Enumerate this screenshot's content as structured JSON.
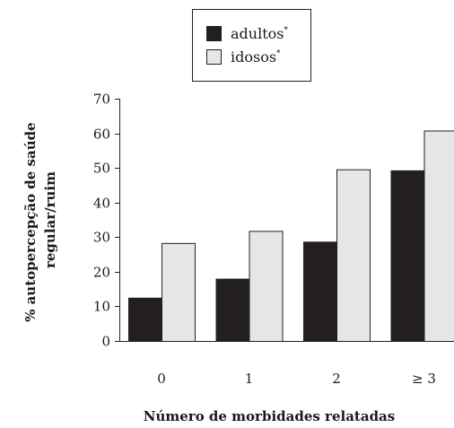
{
  "chart_data": {
    "type": "bar",
    "categories": [
      "0",
      "1",
      "2",
      "≥ 3"
    ],
    "series": [
      {
        "name": "adultos",
        "marker": "*",
        "color": "#231f20",
        "values": [
          12.5,
          18,
          28.7,
          49.3
        ]
      },
      {
        "name": "idosos",
        "marker": "*",
        "color": "#e6e6e6",
        "values": [
          28.3,
          31.8,
          49.6,
          60.8
        ]
      }
    ],
    "yticks": [
      0,
      10,
      20,
      30,
      40,
      50,
      60,
      70
    ],
    "ylim": [
      0,
      70
    ],
    "xlabel": "Número de morbidades relatadas",
    "ylabel": [
      "% autopercepção de saúde",
      "regular/ruim"
    ],
    "legend_position": "top-center",
    "grid": false
  }
}
